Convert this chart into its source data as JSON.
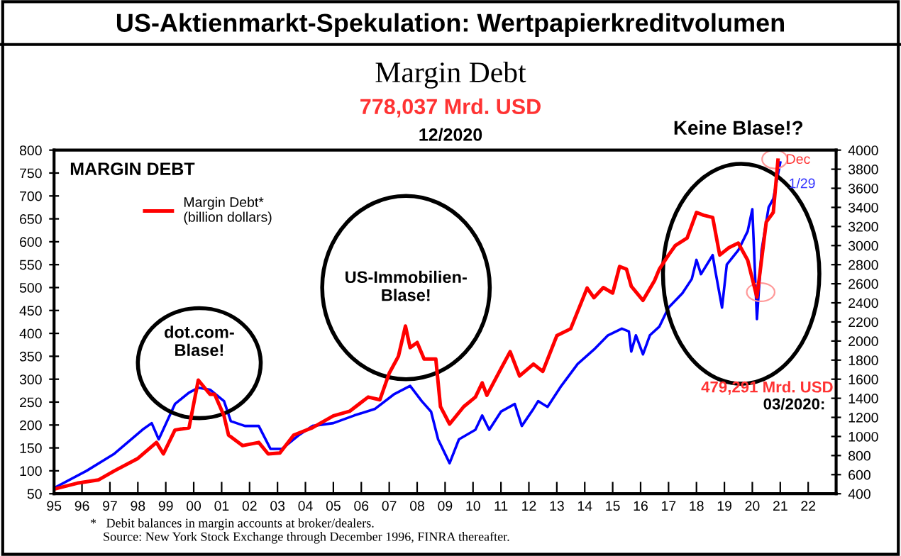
{
  "chart_data": {
    "type": "line",
    "title": "US-Aktienmarkt-Spekulation: Wertpapierkreditvolumen",
    "subtitle": "Margin Debt",
    "annotations": [
      "778,037 Mrd. USD",
      "12/2020",
      "MARGIN DEBT",
      "dot.com-\nBlase!",
      "US-Immobilien-\nBlase!",
      "Keine Blase!?",
      "Dec",
      "1/29",
      "479,291 Mrd. USD",
      "03/2020:",
      "*   Debit balances in margin accounts at broker/dealers.\n    Source: New York Stock Exchange through December 1996, FINRA thereafter."
    ],
    "series": [
      {
        "color": "#0000ff",
        "axis": "y2",
        "x": [
          "1995-01",
          "1996-03",
          "1997-03",
          "1998-03",
          "1998-07",
          "1998-10",
          "1999-05",
          "1999-11",
          "2000-03",
          "2000-08",
          "2001-02",
          "2001-05",
          "2001-11",
          "2002-05",
          "2002-10",
          "2003-03",
          "2003-10",
          "2004-04",
          "2005-01",
          "2005-10",
          "2006-07",
          "2007-03",
          "2007-10",
          "2008-03",
          "2008-07",
          "2008-10",
          "2009-03",
          "2009-07",
          "2010-02",
          "2010-05",
          "2010-08",
          "2011-01",
          "2011-07",
          "2011-10",
          "2012-03",
          "2012-05",
          "2012-09",
          "2013-03",
          "2013-10",
          "2014-05",
          "2014-11",
          "2015-05",
          "2015-08",
          "2015-09",
          "2015-11",
          "2016-02",
          "2016-05",
          "2016-09",
          "2017-01",
          "2017-07",
          "2017-11",
          "2018-01",
          "2018-03",
          "2018-08",
          "2018-09",
          "2018-12",
          "2019-02",
          "2019-07",
          "2019-11",
          "2020-01",
          "2020-03",
          "2020-05",
          "2020-08",
          "2020-10",
          "2021-01"
        ],
        "values": [
          460,
          640,
          820,
          1070,
          1140,
          970,
          1340,
          1460,
          1510,
          1490,
          1370,
          1160,
          1110,
          1110,
          870,
          870,
          1010,
          1110,
          1140,
          1220,
          1290,
          1440,
          1530,
          1370,
          1260,
          970,
          720,
          970,
          1070,
          1220,
          1070,
          1260,
          1340,
          1110,
          1290,
          1370,
          1310,
          1530,
          1760,
          1910,
          2060,
          2130,
          2100,
          1890,
          2060,
          1860,
          2060,
          2150,
          2350,
          2500,
          2650,
          2850,
          2700,
          2900,
          2750,
          2350,
          2800,
          2950,
          3150,
          3380,
          2230,
          2950,
          3400,
          3490,
          3870
        ]
      },
      {
        "name": "Margin Debt*\n(billion dollars)",
        "color": "#ff0000",
        "x": [
          "1995-01",
          "1995-11",
          "1996-08",
          "1997-03",
          "1998-01",
          "1998-09",
          "1998-12",
          "1999-05",
          "1999-11",
          "2000-03",
          "2000-08",
          "2000-10",
          "2001-02",
          "2001-04",
          "2001-10",
          "2002-05",
          "2002-09",
          "2003-02",
          "2003-08",
          "2004-04",
          "2005-01",
          "2005-08",
          "2006-04",
          "2006-09",
          "2007-01",
          "2007-05",
          "2007-08",
          "2007-10",
          "2008-01",
          "2008-04",
          "2008-09",
          "2008-11",
          "2009-03",
          "2009-09",
          "2010-02",
          "2010-05",
          "2010-07",
          "2011-01",
          "2011-05",
          "2011-09",
          "2012-03",
          "2012-07",
          "2013-01",
          "2013-07",
          "2014-02",
          "2014-05",
          "2014-09",
          "2015-01",
          "2015-04",
          "2015-07",
          "2015-09",
          "2016-02",
          "2016-07",
          "2016-09",
          "2017-01",
          "2017-04",
          "2017-09",
          "2018-01",
          "2018-04",
          "2018-08",
          "2018-11",
          "2019-03",
          "2019-07",
          "2019-11",
          "2020-03",
          "2020-07",
          "2020-10",
          "2020-12"
        ],
        "values": [
          60,
          73,
          80,
          100,
          127,
          162,
          137,
          189,
          194,
          298,
          267,
          267,
          220,
          178,
          155,
          162,
          137,
          139,
          178,
          194,
          220,
          230,
          261,
          255,
          313,
          350,
          416,
          369,
          380,
          344,
          344,
          240,
          202,
          240,
          261,
          292,
          265,
          323,
          360,
          307,
          333,
          317,
          395,
          410,
          499,
          478,
          500,
          488,
          546,
          540,
          503,
          472,
          515,
          540,
          571,
          592,
          608,
          664,
          658,
          653,
          571,
          587,
          597,
          560,
          479,
          643,
          664,
          778
        ]
      }
    ],
    "xlim": [
      "1995",
      "2023"
    ],
    "xticks": [
      {
        "value": "1995",
        "label": "95"
      },
      {
        "value": "1996",
        "label": "96"
      },
      {
        "value": "1997",
        "label": "97"
      },
      {
        "value": "1998",
        "label": "98"
      },
      {
        "value": "1999",
        "label": "99"
      },
      {
        "value": "2000",
        "label": "00"
      },
      {
        "value": "2001",
        "label": "01"
      },
      {
        "value": "2002",
        "label": "02"
      },
      {
        "value": "2003",
        "label": "03"
      },
      {
        "value": "2004",
        "label": "04"
      },
      {
        "value": "2005",
        "label": "05"
      },
      {
        "value": "2006",
        "label": "06"
      },
      {
        "value": "2007",
        "label": "07"
      },
      {
        "value": "2008",
        "label": "08"
      },
      {
        "value": "2009",
        "label": "09"
      },
      {
        "value": "2010",
        "label": "10"
      },
      {
        "value": "2011",
        "label": "11"
      },
      {
        "value": "2012",
        "label": "12"
      },
      {
        "value": "2013",
        "label": "13"
      },
      {
        "value": "2014",
        "label": "14"
      },
      {
        "value": "2015",
        "label": "15"
      },
      {
        "value": "2016",
        "label": "16"
      },
      {
        "value": "2017",
        "label": "17"
      },
      {
        "value": "2018",
        "label": "18"
      },
      {
        "value": "2019",
        "label": "19"
      },
      {
        "value": "2020",
        "label": "20"
      },
      {
        "value": "2021",
        "label": "21"
      },
      {
        "value": "2022",
        "label": "22"
      },
      {
        "value": "2023",
        "label": null
      }
    ],
    "ylim": [
      50,
      800
    ],
    "yticks": [
      50,
      100,
      150,
      200,
      250,
      300,
      350,
      400,
      450,
      500,
      550,
      600,
      650,
      700,
      750,
      800
    ],
    "y2lim": [
      400,
      4000
    ],
    "y2ticks": [
      400,
      600,
      800,
      1000,
      1200,
      1400,
      1600,
      1800,
      2000,
      2200,
      2400,
      2600,
      2800,
      3000,
      3200,
      3400,
      3600,
      3800,
      4000
    ],
    "grid": false,
    "legend": "top left",
    "marker": "none",
    "line_style": "solid"
  }
}
